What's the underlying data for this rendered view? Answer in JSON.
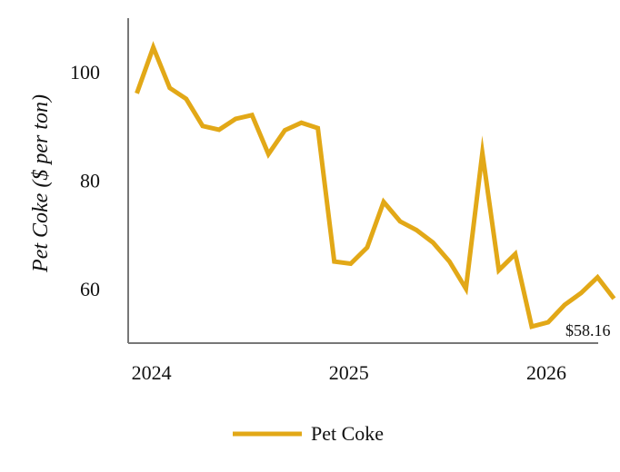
{
  "chart_data": {
    "type": "line",
    "title": "",
    "xlabel": "",
    "ylabel": "Pet Coke ($ per ton)",
    "xlim": [
      "2023-12",
      "2026-05"
    ],
    "ylim": [
      50,
      110
    ],
    "x_ticks": [
      2024,
      2025,
      2026
    ],
    "y_ticks": [
      60,
      80,
      100
    ],
    "grid": false,
    "legend_position": "bottom",
    "series": [
      {
        "name": "Pet Coke",
        "color": "#E2A817",
        "x": [
          "2023-12",
          "2024-01",
          "2024-02",
          "2024-03",
          "2024-04",
          "2024-05",
          "2024-06",
          "2024-07",
          "2024-08",
          "2024-09",
          "2024-10",
          "2024-11",
          "2024-12",
          "2025-01",
          "2025-02",
          "2025-03",
          "2025-04",
          "2025-05",
          "2025-06",
          "2025-07",
          "2025-08",
          "2025-09",
          "2025-10",
          "2025-11",
          "2025-12",
          "2026-01",
          "2026-02",
          "2026-03",
          "2026-04",
          "2026-05"
        ],
        "values": [
          96.0,
          104.5,
          97.0,
          95.0,
          90.0,
          89.3,
          91.3,
          92.0,
          84.8,
          89.2,
          90.6,
          89.6,
          65.0,
          64.6,
          67.6,
          76.0,
          72.4,
          70.8,
          68.5,
          65.0,
          60.0,
          85.0,
          63.4,
          66.4,
          53.0,
          53.8,
          57.0,
          59.2,
          62.1,
          58.16
        ]
      }
    ],
    "end_label": "$58.16",
    "legend": [
      "Pet Coke"
    ]
  }
}
